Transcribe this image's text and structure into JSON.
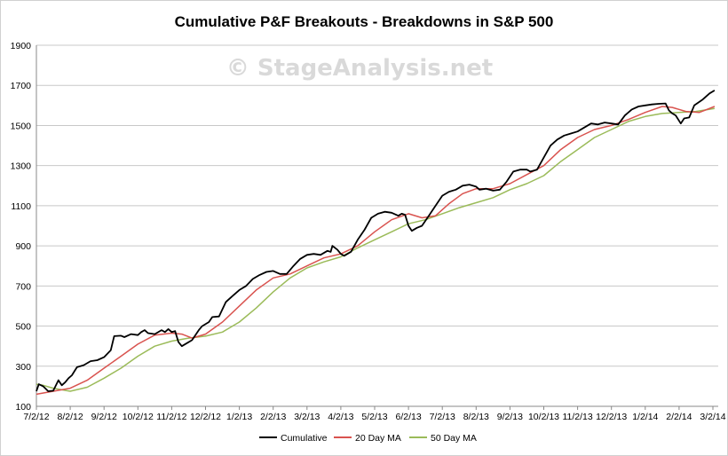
{
  "chart_data": {
    "type": "line",
    "title": "Cumulative P&F Breakouts - Breakdowns in S&P 500",
    "watermark": "© StageAnalysis.net",
    "xlabel": "",
    "ylabel": "",
    "ylim": [
      100,
      1900
    ],
    "yticks": [
      100,
      300,
      500,
      700,
      900,
      1100,
      1300,
      1500,
      1700,
      1900
    ],
    "xticks": [
      "7/2/12",
      "8/2/12",
      "9/2/12",
      "10/2/12",
      "11/2/12",
      "12/2/12",
      "1/2/13",
      "2/2/13",
      "3/2/13",
      "4/2/13",
      "5/2/13",
      "6/2/13",
      "7/2/13",
      "8/2/13",
      "9/2/13",
      "10/2/13",
      "11/2/13",
      "12/2/13",
      "1/2/14",
      "2/2/14",
      "3/2/14"
    ],
    "xlim": [
      0,
      20
    ],
    "grid": true,
    "legend_position": "bottom",
    "series": [
      {
        "name": "Cumulative",
        "color": "#000000",
        "points": [
          [
            0,
            175
          ],
          [
            0.07,
            210
          ],
          [
            0.2,
            200
          ],
          [
            0.35,
            175
          ],
          [
            0.5,
            178
          ],
          [
            0.65,
            230
          ],
          [
            0.75,
            205
          ],
          [
            0.85,
            220
          ],
          [
            0.95,
            240
          ],
          [
            1.05,
            255
          ],
          [
            1.2,
            295
          ],
          [
            1.4,
            305
          ],
          [
            1.6,
            325
          ],
          [
            1.8,
            330
          ],
          [
            2.0,
            345
          ],
          [
            2.2,
            380
          ],
          [
            2.3,
            450
          ],
          [
            2.5,
            452
          ],
          [
            2.6,
            445
          ],
          [
            2.8,
            460
          ],
          [
            3.0,
            455
          ],
          [
            3.1,
            470
          ],
          [
            3.2,
            480
          ],
          [
            3.3,
            465
          ],
          [
            3.5,
            460
          ],
          [
            3.7,
            480
          ],
          [
            3.8,
            470
          ],
          [
            3.9,
            485
          ],
          [
            4.0,
            470
          ],
          [
            4.1,
            475
          ],
          [
            4.2,
            420
          ],
          [
            4.3,
            400
          ],
          [
            4.45,
            415
          ],
          [
            4.6,
            430
          ],
          [
            4.8,
            480
          ],
          [
            4.9,
            500
          ],
          [
            5.1,
            520
          ],
          [
            5.2,
            545
          ],
          [
            5.4,
            548
          ],
          [
            5.6,
            620
          ],
          [
            5.8,
            650
          ],
          [
            6.0,
            680
          ],
          [
            6.2,
            700
          ],
          [
            6.4,
            735
          ],
          [
            6.6,
            755
          ],
          [
            6.8,
            770
          ],
          [
            7.0,
            775
          ],
          [
            7.2,
            760
          ],
          [
            7.4,
            760
          ],
          [
            7.6,
            800
          ],
          [
            7.8,
            835
          ],
          [
            8.0,
            855
          ],
          [
            8.2,
            860
          ],
          [
            8.4,
            855
          ],
          [
            8.6,
            875
          ],
          [
            8.7,
            870
          ],
          [
            8.75,
            900
          ],
          [
            8.9,
            880
          ],
          [
            9.0,
            860
          ],
          [
            9.1,
            850
          ],
          [
            9.3,
            870
          ],
          [
            9.5,
            930
          ],
          [
            9.7,
            980
          ],
          [
            9.9,
            1040
          ],
          [
            10.1,
            1060
          ],
          [
            10.3,
            1070
          ],
          [
            10.5,
            1065
          ],
          [
            10.7,
            1050
          ],
          [
            10.8,
            1060
          ],
          [
            10.9,
            1055
          ],
          [
            11.0,
            1000
          ],
          [
            11.1,
            975
          ],
          [
            11.25,
            990
          ],
          [
            11.4,
            1000
          ],
          [
            11.6,
            1050
          ],
          [
            11.8,
            1100
          ],
          [
            12.0,
            1150
          ],
          [
            12.2,
            1170
          ],
          [
            12.4,
            1180
          ],
          [
            12.6,
            1200
          ],
          [
            12.8,
            1205
          ],
          [
            13.0,
            1195
          ],
          [
            13.1,
            1180
          ],
          [
            13.3,
            1185
          ],
          [
            13.5,
            1175
          ],
          [
            13.7,
            1180
          ],
          [
            13.9,
            1220
          ],
          [
            14.1,
            1270
          ],
          [
            14.3,
            1280
          ],
          [
            14.5,
            1280
          ],
          [
            14.6,
            1270
          ],
          [
            14.8,
            1280
          ],
          [
            15.0,
            1340
          ],
          [
            15.2,
            1400
          ],
          [
            15.4,
            1430
          ],
          [
            15.6,
            1450
          ],
          [
            15.8,
            1460
          ],
          [
            16.0,
            1470
          ],
          [
            16.2,
            1490
          ],
          [
            16.4,
            1510
          ],
          [
            16.6,
            1505
          ],
          [
            16.8,
            1515
          ],
          [
            17.0,
            1510
          ],
          [
            17.2,
            1505
          ],
          [
            17.4,
            1550
          ],
          [
            17.6,
            1580
          ],
          [
            17.8,
            1595
          ],
          [
            18.0,
            1600
          ],
          [
            18.2,
            1605
          ],
          [
            18.4,
            1608
          ],
          [
            18.6,
            1610
          ],
          [
            18.7,
            1575
          ],
          [
            18.8,
            1560
          ],
          [
            18.9,
            1550
          ],
          [
            19.05,
            1510
          ],
          [
            19.15,
            1535
          ],
          [
            19.3,
            1540
          ],
          [
            19.45,
            1600
          ],
          [
            19.7,
            1630
          ],
          [
            19.9,
            1660
          ],
          [
            20.05,
            1675
          ]
        ]
      },
      {
        "name": "20 Day MA",
        "color": "#d9534f",
        "points": [
          [
            0,
            160
          ],
          [
            0.5,
            175
          ],
          [
            1.0,
            190
          ],
          [
            1.5,
            230
          ],
          [
            2.0,
            290
          ],
          [
            2.5,
            350
          ],
          [
            3.0,
            410
          ],
          [
            3.5,
            455
          ],
          [
            4.0,
            465
          ],
          [
            4.3,
            460
          ],
          [
            4.6,
            440
          ],
          [
            5.0,
            460
          ],
          [
            5.5,
            520
          ],
          [
            6.0,
            600
          ],
          [
            6.5,
            680
          ],
          [
            7.0,
            740
          ],
          [
            7.5,
            760
          ],
          [
            8.0,
            800
          ],
          [
            8.5,
            840
          ],
          [
            9.0,
            860
          ],
          [
            9.5,
            900
          ],
          [
            10.0,
            970
          ],
          [
            10.5,
            1030
          ],
          [
            11.0,
            1060
          ],
          [
            11.4,
            1040
          ],
          [
            11.8,
            1050
          ],
          [
            12.2,
            1110
          ],
          [
            12.6,
            1160
          ],
          [
            13.0,
            1185
          ],
          [
            13.5,
            1185
          ],
          [
            14.0,
            1210
          ],
          [
            14.5,
            1255
          ],
          [
            15.0,
            1300
          ],
          [
            15.5,
            1380
          ],
          [
            16.0,
            1440
          ],
          [
            16.5,
            1480
          ],
          [
            17.0,
            1500
          ],
          [
            17.5,
            1530
          ],
          [
            18.0,
            1565
          ],
          [
            18.5,
            1595
          ],
          [
            18.8,
            1590
          ],
          [
            19.2,
            1570
          ],
          [
            19.6,
            1565
          ],
          [
            20.05,
            1595
          ]
        ]
      },
      {
        "name": "50 Day MA",
        "color": "#9bbb59",
        "points": [
          [
            0,
            210
          ],
          [
            0.2,
            205
          ],
          [
            0.5,
            190
          ],
          [
            1.0,
            175
          ],
          [
            1.5,
            195
          ],
          [
            2.0,
            240
          ],
          [
            2.5,
            290
          ],
          [
            3.0,
            350
          ],
          [
            3.5,
            400
          ],
          [
            4.0,
            425
          ],
          [
            4.5,
            440
          ],
          [
            5.0,
            450
          ],
          [
            5.5,
            470
          ],
          [
            6.0,
            520
          ],
          [
            6.5,
            590
          ],
          [
            7.0,
            670
          ],
          [
            7.5,
            740
          ],
          [
            8.0,
            790
          ],
          [
            8.5,
            820
          ],
          [
            9.0,
            845
          ],
          [
            9.5,
            890
          ],
          [
            10.0,
            930
          ],
          [
            10.5,
            970
          ],
          [
            11.0,
            1010
          ],
          [
            11.5,
            1030
          ],
          [
            12.0,
            1060
          ],
          [
            12.5,
            1090
          ],
          [
            13.0,
            1115
          ],
          [
            13.5,
            1140
          ],
          [
            14.0,
            1180
          ],
          [
            14.5,
            1210
          ],
          [
            15.0,
            1250
          ],
          [
            15.5,
            1320
          ],
          [
            16.0,
            1380
          ],
          [
            16.5,
            1440
          ],
          [
            17.0,
            1480
          ],
          [
            17.5,
            1520
          ],
          [
            18.0,
            1545
          ],
          [
            18.5,
            1560
          ],
          [
            19.0,
            1565
          ],
          [
            19.5,
            1570
          ],
          [
            20.05,
            1585
          ]
        ]
      }
    ]
  }
}
